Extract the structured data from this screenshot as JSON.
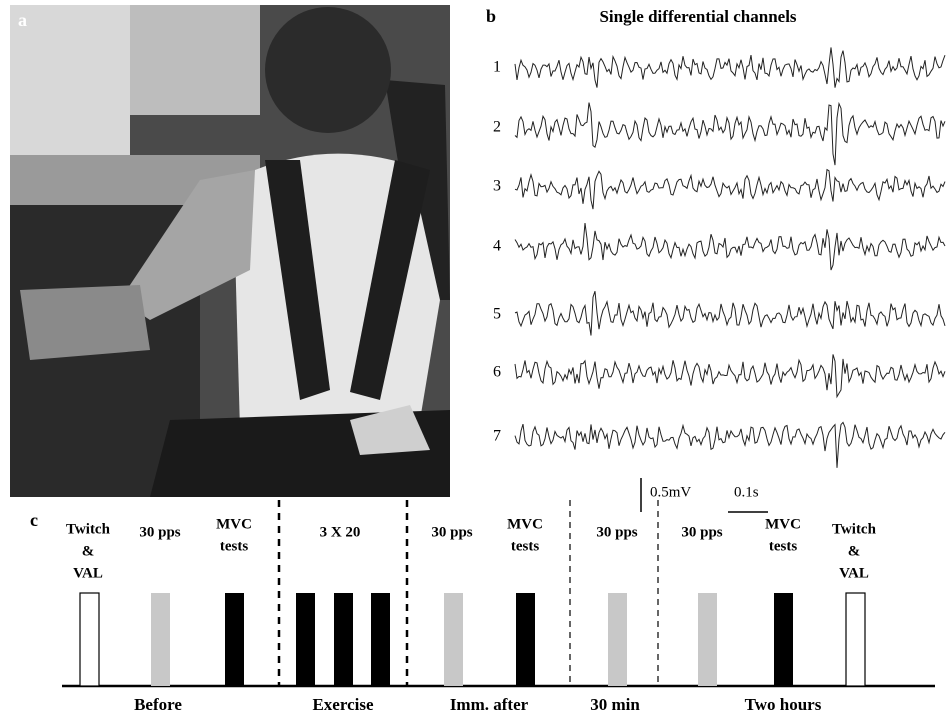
{
  "panel_a": {
    "label": "a"
  },
  "panel_b": {
    "label": "b",
    "title": "Single differential channels",
    "channels": [
      "1",
      "2",
      "3",
      "4",
      "5",
      "6",
      "7"
    ],
    "scale_amplitude": "0.5mV",
    "scale_time": "0.1s"
  },
  "panel_c": {
    "label": "c",
    "events": [
      {
        "lines": [
          "Twitch",
          "&",
          "VAL"
        ]
      },
      {
        "lines": [
          "30 pps"
        ]
      },
      {
        "lines": [
          "MVC",
          "tests"
        ]
      },
      {
        "lines": [
          "3 X 20"
        ]
      },
      {
        "lines": [
          "30 pps"
        ]
      },
      {
        "lines": [
          "MVC",
          "tests"
        ]
      },
      {
        "lines": [
          "30 pps"
        ]
      },
      {
        "lines": [
          "30 pps"
        ]
      },
      {
        "lines": [
          "MVC",
          "tests"
        ]
      },
      {
        "lines": [
          "Twitch",
          "&",
          "VAL"
        ]
      }
    ],
    "phases": [
      "Before",
      "Exercise",
      "Imm. after",
      "30 min",
      "Two hours"
    ]
  }
}
